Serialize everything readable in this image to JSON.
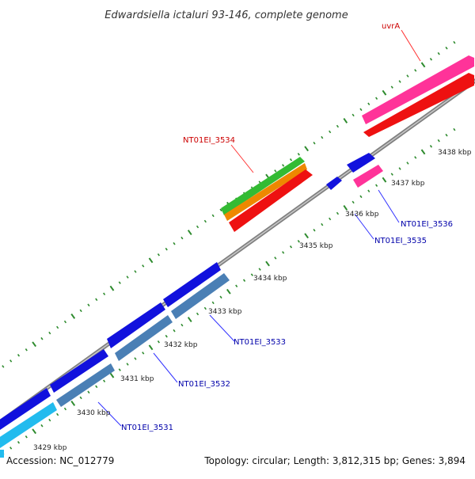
{
  "title": "Edwardsiella ictaluri 93-146, complete genome",
  "footer": {
    "accession": "Accession: NC_012779",
    "summary": "Topology: circular; Length: 3,812,315 bp; Genes: 3,894"
  },
  "colors": {
    "backbone": "#8a8a8a",
    "tick_dots": "#2e8b2e",
    "label_red": "#cc0000",
    "label_blue": "#0000aa",
    "leader_red": "#ff3333",
    "leader_blue": "#3333ff"
  },
  "tick_labels": [
    "3429 kbp",
    "3430 kbp",
    "3431 kbp",
    "3432 kbp",
    "3433 kbp",
    "3434 kbp",
    "3435 kbp",
    "3436 kbp",
    "3437 kbp",
    "3438 kbp"
  ],
  "gene_labels": {
    "uvrA": "uvrA",
    "nt3534": "NT01EI_3534",
    "nt3536": "NT01EI_3536",
    "nt3535": "NT01EI_3535",
    "nt3533": "NT01EI_3533",
    "nt3532": "NT01EI_3532",
    "nt3531": "NT01EI_3531"
  }
}
